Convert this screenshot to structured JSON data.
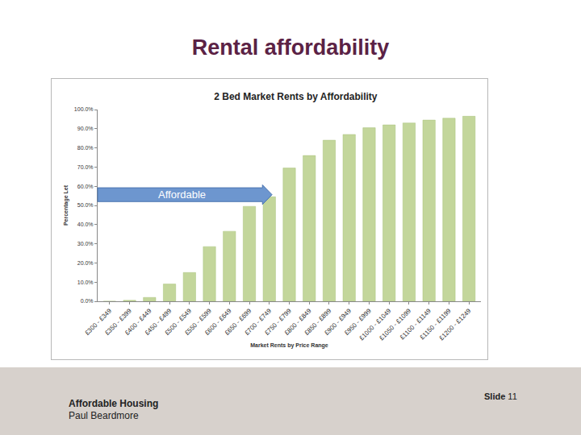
{
  "slide": {
    "title": "Rental affordability",
    "footer_lines": [
      "Affordable Housing",
      "Paul Beardmore"
    ],
    "slide_label": "Slide",
    "slide_number": "11"
  },
  "chart_data": {
    "type": "bar",
    "title": "2 Bed Market Rents by Affordability",
    "x_label": "Market Rents by Price Range",
    "y_label": "Percentage Let",
    "categories": [
      "£300 - £349",
      "£350 - £399",
      "£400 - £449",
      "£450 - £499",
      "£500 - £549",
      "£550 - £599",
      "£600 - £649",
      "£650 - £699",
      "£700 - £749",
      "£750 - £799",
      "£800 - £849",
      "£850 - £899",
      "£900 - £949",
      "£950 - £999",
      "£1000 - £1049",
      "£1050 - £1099",
      "£1100 - £1149",
      "£1150 - £1199",
      "£1200 - £1249"
    ],
    "values": [
      0,
      0.5,
      2,
      9,
      15,
      28.5,
      36.5,
      49.5,
      54.5,
      69.5,
      76,
      84,
      87,
      90.5,
      92,
      93,
      94.5,
      95.5,
      96.5
    ],
    "color": "#c3d69b",
    "ylim": [
      0,
      100
    ],
    "yticks": [
      {
        "value": 0,
        "label": "0.0%"
      },
      {
        "value": 10,
        "label": "10.0%"
      },
      {
        "value": 20,
        "label": "20.0%"
      },
      {
        "value": 30,
        "label": "30.0%"
      },
      {
        "value": 40,
        "label": "40.0%"
      },
      {
        "value": 50,
        "label": "50.0%"
      },
      {
        "value": 60,
        "label": "60.0%"
      },
      {
        "value": 70,
        "label": "70.0%"
      },
      {
        "value": 80,
        "label": "80.0%"
      },
      {
        "value": 90,
        "label": "90.0%"
      },
      {
        "value": 100,
        "label": "100.0%"
      }
    ],
    "grid": false,
    "annotations": [
      "Affordable"
    ]
  }
}
